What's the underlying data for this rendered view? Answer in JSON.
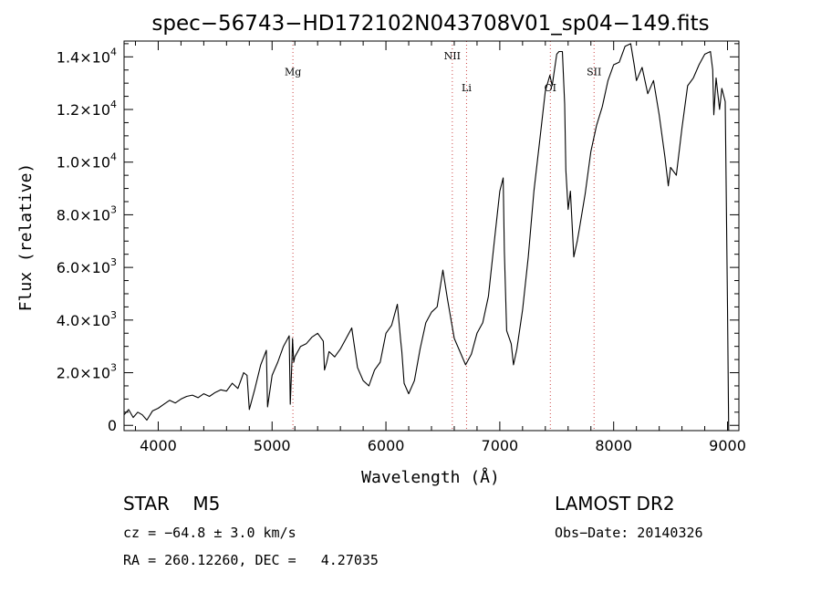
{
  "chart_data": {
    "type": "line",
    "title": "spec−56743−HD172102N043708V01_sp04−149.fits",
    "xlabel": "Wavelength (Å)",
    "ylabel": "Flux (relative)",
    "xlim": [
      3700,
      9100
    ],
    "ylim": [
      -200,
      14600
    ],
    "x_ticks": [
      4000,
      5000,
      6000,
      7000,
      8000,
      9000
    ],
    "x_tick_labels": [
      "4000",
      "5000",
      "6000",
      "7000",
      "8000",
      "9000"
    ],
    "y_ticks": [
      0,
      2000,
      4000,
      6000,
      8000,
      10000,
      12000,
      14000
    ],
    "y_tick_labels": [
      {
        "value": 0,
        "mant": "0",
        "exp": ""
      },
      {
        "value": 2000,
        "mant": "2.0×10",
        "exp": "3"
      },
      {
        "value": 4000,
        "mant": "4.0×10",
        "exp": "3"
      },
      {
        "value": 6000,
        "mant": "6.0×10",
        "exp": "3"
      },
      {
        "value": 8000,
        "mant": "8.0×10",
        "exp": "3"
      },
      {
        "value": 10000,
        "mant": "1.0×10",
        "exp": "4"
      },
      {
        "value": 12000,
        "mant": "1.2×10",
        "exp": "4"
      },
      {
        "value": 14000,
        "mant": "1.4×10",
        "exp": "4"
      }
    ],
    "grid": false,
    "line_color": "#000000",
    "marker_color": "#cc4444",
    "lines": [
      {
        "label": "Mg",
        "x": 5183,
        "label_y": 13300
      },
      {
        "label": "NII",
        "x": 6583,
        "label_y": 13900
      },
      {
        "label": "Li",
        "x": 6708,
        "label_y": 12700
      },
      {
        "label": "OI",
        "x": 7444,
        "label_y": 12700
      },
      {
        "label": "SII",
        "x": 7828,
        "label_y": 13300
      }
    ],
    "series": [
      {
        "x": [
          3700,
          3740,
          3780,
          3820,
          3860,
          3900,
          3950,
          4000,
          4050,
          4100,
          4150,
          4200,
          4250,
          4300,
          4350,
          4400,
          4450,
          4500,
          4550,
          4600,
          4650,
          4700,
          4750,
          4780,
          4800,
          4850,
          4900,
          4950,
          4960,
          5000,
          5050,
          5100,
          5150,
          5160,
          5175,
          5180,
          5190,
          5200,
          5250,
          5300,
          5350,
          5400,
          5450,
          5460,
          5480,
          5500,
          5550,
          5600,
          5650,
          5700,
          5750,
          5800,
          5850,
          5900,
          5950,
          6000,
          6050,
          6100,
          6130,
          6140,
          6160,
          6200,
          6250,
          6300,
          6350,
          6400,
          6450,
          6500,
          6540,
          6560,
          6580,
          6600,
          6650,
          6700,
          6750,
          6800,
          6850,
          6900,
          6950,
          7000,
          7030,
          7040,
          7060,
          7100,
          7120,
          7150,
          7200,
          7250,
          7300,
          7350,
          7400,
          7440,
          7460,
          7500,
          7520,
          7550,
          7570,
          7580,
          7600,
          7620,
          7650,
          7680,
          7700,
          7750,
          7800,
          7850,
          7900,
          7950,
          8000,
          8050,
          8100,
          8150,
          8180,
          8200,
          8250,
          8300,
          8350,
          8400,
          8450,
          8480,
          8500,
          8550,
          8600,
          8650,
          8700,
          8750,
          8800,
          8850,
          8870,
          8880,
          8900,
          8930,
          8950,
          8980,
          9000,
          9010
        ],
        "y": [
          400,
          600,
          300,
          500,
          400,
          200,
          550,
          650,
          800,
          950,
          850,
          1000,
          1100,
          1150,
          1050,
          1200,
          1100,
          1250,
          1350,
          1300,
          1600,
          1400,
          2000,
          1900,
          600,
          1400,
          2300,
          2850,
          700,
          1900,
          2400,
          3000,
          3400,
          800,
          2500,
          3300,
          2400,
          2600,
          3000,
          3100,
          3350,
          3500,
          3200,
          2100,
          2400,
          2800,
          2600,
          2900,
          3300,
          3700,
          2200,
          1700,
          1500,
          2100,
          2400,
          3500,
          3800,
          4600,
          3200,
          2800,
          1600,
          1200,
          1700,
          2900,
          3900,
          4300,
          4500,
          5900,
          4800,
          4300,
          3800,
          3300,
          2800,
          2300,
          2700,
          3500,
          3900,
          4900,
          6900,
          8900,
          9400,
          6600,
          3600,
          3100,
          2300,
          2900,
          4400,
          6400,
          8900,
          10800,
          12700,
          13300,
          12900,
          14100,
          14200,
          14200,
          12200,
          9700,
          8200,
          8900,
          6400,
          7000,
          7500,
          8800,
          10400,
          11400,
          12100,
          13100,
          13700,
          13800,
          14400,
          14500,
          13700,
          13100,
          13600,
          12600,
          13100,
          11800,
          10200,
          9100,
          9800,
          9500,
          11300,
          12900,
          13200,
          13700,
          14100,
          14200,
          13500,
          11800,
          13200,
          12000,
          12800,
          12300,
          4500,
          -200
        ]
      }
    ]
  },
  "info": {
    "left_line1": "STAR    M5",
    "left_line2": "cz = −64.8 ± 3.0 km/s",
    "left_line3": "RA = 260.12260, DEC =   4.27035",
    "right_line1": "LAMOST DR2",
    "right_line2": "Obs−Date: 20140326"
  }
}
